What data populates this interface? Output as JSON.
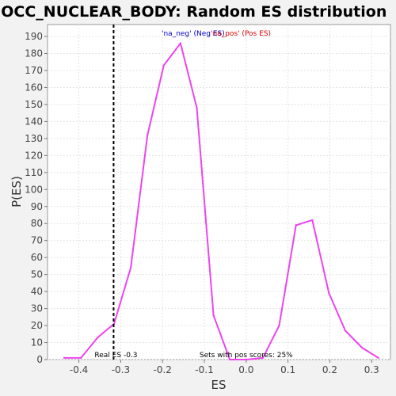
{
  "chart_data": {
    "type": "line",
    "title": "GOCC_NUCLEAR_BODY: Random ES distribution",
    "xlabel": "ES",
    "ylabel": "P(ES)",
    "xlim": [
      -0.475,
      0.345
    ],
    "ylim": [
      0,
      197
    ],
    "x_ticks": [
      -0.4,
      -0.3,
      -0.2,
      -0.1,
      0.0,
      0.1,
      0.2,
      0.3
    ],
    "x_tick_labels": [
      "-0.4",
      "-0.3",
      "-0.2",
      "-0.1",
      "0.0",
      "0.1",
      "0.2",
      "0.3"
    ],
    "y_ticks": [
      0,
      10,
      20,
      30,
      40,
      50,
      60,
      70,
      80,
      90,
      100,
      110,
      120,
      130,
      140,
      150,
      160,
      170,
      180,
      190
    ],
    "y_tick_labels": [
      "0",
      "10",
      "20",
      "30",
      "40",
      "50",
      "60",
      "70",
      "80",
      "90",
      "100",
      "110",
      "120",
      "130",
      "140",
      "150",
      "160",
      "170",
      "180",
      "190"
    ],
    "grid": true,
    "series": [
      {
        "color": "#ee44ee",
        "x": [
          -0.435,
          -0.395,
          -0.355,
          -0.316,
          -0.276,
          -0.236,
          -0.197,
          -0.157,
          -0.118,
          -0.078,
          -0.039,
          0.001,
          0.04,
          0.079,
          0.119,
          0.158,
          0.198,
          0.237,
          0.277,
          0.316
        ],
        "y": [
          1,
          1,
          13,
          21,
          54,
          132,
          173,
          186,
          148,
          26,
          0,
          0,
          1,
          20,
          79,
          82,
          39,
          17,
          7,
          1
        ]
      }
    ],
    "real_es": {
      "value": -0.317,
      "label": "Real ES -0.3"
    },
    "legend": {
      "placement": "top-center",
      "neg_label": "'na_neg' (Neg ES)",
      "pos_label": "'na_pos' (Pos ES)",
      "neg_color": "#0000cc",
      "pos_color": "#dd0000"
    },
    "sets_note": "Sets with pos scores: 25%"
  }
}
